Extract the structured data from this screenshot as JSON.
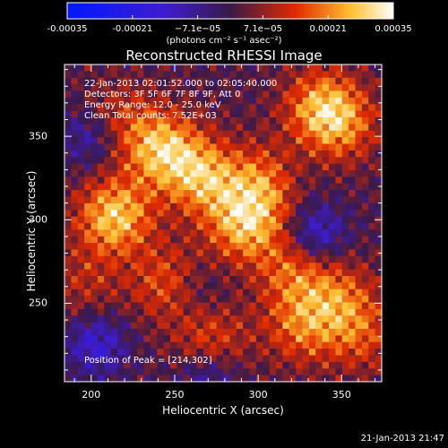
{
  "chart_data": {
    "type": "heatmap",
    "title": "Reconstructed RHESSI Image",
    "xlabel": "Heliocentric X (arcsec)",
    "ylabel": "Heliocentric Y (arcsec)",
    "xlim": [
      184,
      374
    ],
    "ylim": [
      203,
      393
    ],
    "xticks": [
      "200",
      "250",
      "300",
      "350"
    ],
    "yticks": [
      "250",
      "300",
      "350"
    ],
    "colorbar": {
      "ticks": [
        "-0.00035",
        "-0.00021",
        "−7.1e−05",
        "7.1e−05",
        "0.00021",
        "0.00035"
      ],
      "unit": "(photons cm⁻² s⁻¹ asec⁻²)",
      "range": [
        -0.00035,
        0.00035
      ]
    },
    "annotations": [
      "22-Jan-2013 02:01:52.000 to 02:05:40.000",
      "Detectors: 3F 5F 6F 7F 8F 9F, Att 0",
      "Energy Range: 12.0 - 25.0 keV",
      "Clean     Total counts: 7.52E+03"
    ],
    "peak_label": "Position of Peak = [214,302]",
    "peak": [
      214,
      302
    ],
    "date_stamp": "21-Jan-2013 21:47",
    "hotspots": [
      {
        "x": 214,
        "y": 302,
        "amp": 0.9
      },
      {
        "x": 243,
        "y": 342,
        "amp": 0.85
      },
      {
        "x": 268,
        "y": 325,
        "amp": 0.75
      },
      {
        "x": 292,
        "y": 297,
        "amp": 0.8
      },
      {
        "x": 306,
        "y": 322,
        "amp": 0.65
      },
      {
        "x": 338,
        "y": 368,
        "amp": 0.7
      },
      {
        "x": 350,
        "y": 356,
        "amp": 0.5
      },
      {
        "x": 247,
        "y": 262,
        "amp": 0.55
      },
      {
        "x": 272,
        "y": 228,
        "amp": 0.45
      },
      {
        "x": 322,
        "y": 270,
        "amp": 0.55
      },
      {
        "x": 349,
        "y": 252,
        "amp": 0.5
      },
      {
        "x": 326,
        "y": 236,
        "amp": 0.55
      },
      {
        "x": 362,
        "y": 230,
        "amp": 0.4
      },
      {
        "x": 196,
        "y": 262,
        "amp": 0.3
      },
      {
        "x": 216,
        "y": 360,
        "amp": 0.4
      }
    ],
    "coldspots": [
      {
        "x": 203,
        "y": 225,
        "amp": 0.55
      },
      {
        "x": 334,
        "y": 291,
        "amp": 0.6
      },
      {
        "x": 200,
        "y": 350,
        "amp": 0.45
      },
      {
        "x": 270,
        "y": 205,
        "amp": 0.4
      },
      {
        "x": 262,
        "y": 258,
        "amp": 0.3
      },
      {
        "x": 320,
        "y": 325,
        "amp": 0.2
      }
    ]
  }
}
